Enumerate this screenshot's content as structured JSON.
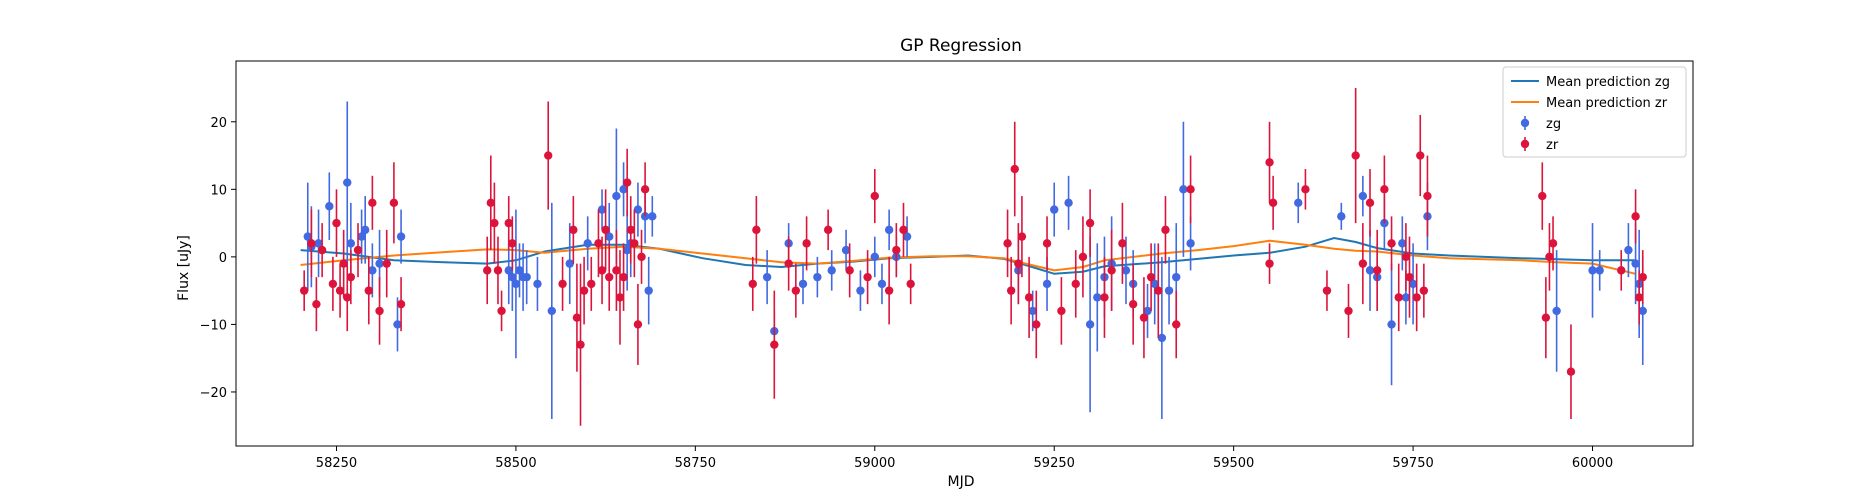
{
  "chart_data": {
    "type": "scatter",
    "title": "GP Regression",
    "xlabel": "MJD",
    "ylabel": "Flux [uJy]",
    "xlim": [
      58110,
      60140
    ],
    "ylim": [
      -28,
      29
    ],
    "xticks": [
      58250,
      58500,
      58750,
      59000,
      59250,
      59500,
      59750,
      60000
    ],
    "yticks": [
      -20,
      -10,
      0,
      10,
      20
    ],
    "legend_position": "top-right",
    "grid": false,
    "colors": {
      "zg_mean": "#1f77b4",
      "zr_mean": "#ff7f0e",
      "zg_points": "#4169e1",
      "zr_points": "#dc143c"
    },
    "legend": [
      "Mean prediction zg",
      "Mean prediction zr",
      "zg",
      "zr"
    ],
    "lines": [
      {
        "name": "Mean prediction zg",
        "x": [
          58200,
          58260,
          58330,
          58400,
          58460,
          58500,
          58540,
          58600,
          58650,
          58700,
          58760,
          58820,
          58870,
          58920,
          58970,
          59020,
          59080,
          59130,
          59180,
          59210,
          59250,
          59290,
          59320,
          59400,
          59450,
          59500,
          59550,
          59600,
          59640,
          59670,
          59700,
          59750,
          59800,
          59900,
          60000,
          60060
        ],
        "y": [
          1.0,
          0.5,
          -0.5,
          -0.8,
          -1.0,
          -0.5,
          0.8,
          1.8,
          1.8,
          1.2,
          -0.2,
          -1.2,
          -1.5,
          -1.0,
          -0.7,
          -0.2,
          0.0,
          0.2,
          -0.3,
          -1.2,
          -2.5,
          -2.2,
          -1.4,
          -0.8,
          -0.3,
          0.2,
          0.6,
          1.5,
          2.8,
          2.2,
          1.3,
          0.5,
          0.2,
          -0.2,
          -0.5,
          -0.5
        ]
      },
      {
        "name": "Mean prediction zr",
        "x": [
          58200,
          58260,
          58330,
          58400,
          58460,
          58500,
          58540,
          58600,
          58650,
          58700,
          58760,
          58820,
          58870,
          58920,
          58970,
          59020,
          59080,
          59130,
          59180,
          59210,
          59250,
          59290,
          59320,
          59400,
          59450,
          59500,
          59550,
          59600,
          59640,
          59670,
          59700,
          59750,
          59800,
          59900,
          59950,
          60000,
          60060
        ],
        "y": [
          -1.2,
          -0.5,
          0.2,
          0.7,
          1.1,
          1.0,
          0.6,
          1.2,
          1.5,
          1.2,
          0.5,
          -0.2,
          -0.8,
          -1.0,
          -0.6,
          -0.1,
          0.1,
          0.1,
          -0.2,
          -1.0,
          -2.0,
          -1.5,
          -0.5,
          0.5,
          1.0,
          1.6,
          2.4,
          1.8,
          1.2,
          0.9,
          0.8,
          0.2,
          -0.2,
          -0.5,
          -0.8,
          -1.0,
          -2.5
        ]
      }
    ],
    "series": [
      {
        "name": "zg",
        "points": [
          [
            58210,
            3,
            8
          ],
          [
            58215,
            1.5,
            6
          ],
          [
            58225,
            2,
            5
          ],
          [
            58240,
            7.5,
            5
          ],
          [
            58265,
            11,
            12
          ],
          [
            58270,
            2,
            6
          ],
          [
            58285,
            3,
            4
          ],
          [
            58290,
            4,
            5
          ],
          [
            58300,
            -2,
            4
          ],
          [
            58310,
            -1,
            5
          ],
          [
            58335,
            -10,
            4
          ],
          [
            58340,
            3,
            4
          ],
          [
            58490,
            -2,
            5
          ],
          [
            58495,
            -3,
            5
          ],
          [
            58500,
            -4,
            11
          ],
          [
            58505,
            -2,
            4
          ],
          [
            58510,
            -3,
            5
          ],
          [
            58515,
            -3,
            4
          ],
          [
            58530,
            -4,
            4
          ],
          [
            58550,
            -8,
            16
          ],
          [
            58575,
            -1,
            6
          ],
          [
            58600,
            2,
            4
          ],
          [
            58620,
            7,
            3
          ],
          [
            58630,
            3,
            5
          ],
          [
            58640,
            9,
            10
          ],
          [
            58650,
            10,
            4
          ],
          [
            58655,
            1,
            6
          ],
          [
            58660,
            2,
            5
          ],
          [
            58670,
            7,
            4
          ],
          [
            58680,
            6,
            4
          ],
          [
            58685,
            -5,
            5
          ],
          [
            58690,
            6,
            3
          ],
          [
            58850,
            -3,
            4
          ],
          [
            58860,
            -11,
            3
          ],
          [
            58880,
            2,
            3
          ],
          [
            58900,
            -4,
            3
          ],
          [
            58920,
            -3,
            3
          ],
          [
            58940,
            -2,
            3
          ],
          [
            58960,
            1,
            3
          ],
          [
            58980,
            -5,
            3
          ],
          [
            59000,
            0,
            3
          ],
          [
            59010,
            -4,
            3
          ],
          [
            59020,
            4,
            3
          ],
          [
            59030,
            0,
            3
          ],
          [
            59045,
            3,
            3
          ],
          [
            59200,
            -2,
            5
          ],
          [
            59220,
            -8,
            3
          ],
          [
            59240,
            -4,
            4
          ],
          [
            59250,
            7,
            4
          ],
          [
            59270,
            8,
            4
          ],
          [
            59300,
            -10,
            13
          ],
          [
            59310,
            -6,
            8
          ],
          [
            59320,
            -3,
            6
          ],
          [
            59330,
            -1,
            7
          ],
          [
            59350,
            -2,
            5
          ],
          [
            59360,
            -4,
            5
          ],
          [
            59380,
            -8,
            4
          ],
          [
            59390,
            -4,
            6
          ],
          [
            59400,
            -12,
            12
          ],
          [
            59410,
            -5,
            5
          ],
          [
            59420,
            -3,
            8
          ],
          [
            59430,
            10,
            10
          ],
          [
            59440,
            2,
            4
          ],
          [
            59590,
            8,
            3
          ],
          [
            59650,
            6,
            2
          ],
          [
            59680,
            9,
            3
          ],
          [
            59690,
            -2,
            6
          ],
          [
            59700,
            -3,
            5
          ],
          [
            59710,
            5,
            4
          ],
          [
            59720,
            -10,
            9
          ],
          [
            59735,
            2,
            4
          ],
          [
            59740,
            -6,
            4
          ],
          [
            59750,
            -4,
            6
          ],
          [
            59770,
            6,
            5
          ],
          [
            59950,
            -8,
            9
          ],
          [
            60000,
            -2,
            7
          ],
          [
            60010,
            -2,
            3
          ],
          [
            60050,
            1,
            4
          ],
          [
            60060,
            -1,
            6
          ],
          [
            60065,
            -4,
            8
          ],
          [
            60070,
            -8,
            8
          ]
        ]
      },
      {
        "name": "zr",
        "points": [
          [
            58205,
            -5,
            3
          ],
          [
            58215,
            2,
            5
          ],
          [
            58222,
            -7,
            4
          ],
          [
            58230,
            1,
            4
          ],
          [
            58245,
            -4,
            4
          ],
          [
            58250,
            5,
            5
          ],
          [
            58255,
            -5,
            4
          ],
          [
            58260,
            -1,
            5
          ],
          [
            58265,
            -6,
            5
          ],
          [
            58270,
            -3,
            4
          ],
          [
            58280,
            1,
            4
          ],
          [
            58295,
            -5,
            5
          ],
          [
            58300,
            8,
            4
          ],
          [
            58310,
            -8,
            5
          ],
          [
            58320,
            -1,
            5
          ],
          [
            58330,
            8,
            6
          ],
          [
            58340,
            -7,
            4
          ],
          [
            58460,
            -2,
            5
          ],
          [
            58465,
            8,
            7
          ],
          [
            58470,
            5,
            6
          ],
          [
            58475,
            -2,
            5
          ],
          [
            58480,
            -8,
            3
          ],
          [
            58490,
            5,
            4
          ],
          [
            58495,
            2,
            4
          ],
          [
            58545,
            15,
            8
          ],
          [
            58565,
            -4,
            4
          ],
          [
            58580,
            4,
            5
          ],
          [
            58585,
            -9,
            8
          ],
          [
            58590,
            -13,
            12
          ],
          [
            58595,
            -5,
            5
          ],
          [
            58605,
            -4,
            4
          ],
          [
            58615,
            2,
            5
          ],
          [
            58620,
            -2,
            5
          ],
          [
            58625,
            4,
            6
          ],
          [
            58630,
            -3,
            5
          ],
          [
            58640,
            -2,
            6
          ],
          [
            58645,
            -6,
            7
          ],
          [
            58650,
            -3,
            5
          ],
          [
            58655,
            11,
            5
          ],
          [
            58660,
            4,
            5
          ],
          [
            58665,
            2,
            5
          ],
          [
            58670,
            -10,
            6
          ],
          [
            58675,
            0,
            4
          ],
          [
            58680,
            10,
            4
          ],
          [
            58830,
            -4,
            4
          ],
          [
            58835,
            4,
            5
          ],
          [
            58860,
            -13,
            8
          ],
          [
            58880,
            -1,
            4
          ],
          [
            58890,
            -5,
            4
          ],
          [
            58905,
            2,
            4
          ],
          [
            58935,
            4,
            3
          ],
          [
            58965,
            -2,
            4
          ],
          [
            58990,
            -3,
            4
          ],
          [
            59000,
            9,
            4
          ],
          [
            59020,
            -5,
            5
          ],
          [
            59030,
            1,
            4
          ],
          [
            59040,
            4,
            4
          ],
          [
            59050,
            -4,
            3
          ],
          [
            59185,
            2,
            5
          ],
          [
            59190,
            -5,
            5
          ],
          [
            59195,
            13,
            7
          ],
          [
            59200,
            -1,
            6
          ],
          [
            59205,
            3,
            6
          ],
          [
            59215,
            -6,
            6
          ],
          [
            59225,
            -10,
            5
          ],
          [
            59240,
            2,
            4
          ],
          [
            59260,
            -8,
            5
          ],
          [
            59280,
            -4,
            5
          ],
          [
            59290,
            0,
            6
          ],
          [
            59300,
            5,
            5
          ],
          [
            59320,
            -6,
            6
          ],
          [
            59330,
            -2,
            6
          ],
          [
            59345,
            2,
            6
          ],
          [
            59360,
            -7,
            6
          ],
          [
            59375,
            -9,
            6
          ],
          [
            59385,
            -3,
            5
          ],
          [
            59395,
            -5,
            7
          ],
          [
            59405,
            4,
            5
          ],
          [
            59420,
            -10,
            5
          ],
          [
            59440,
            10,
            5
          ],
          [
            59550,
            14,
            6
          ],
          [
            59550,
            -1,
            3
          ],
          [
            59555,
            8,
            4
          ],
          [
            59600,
            10,
            3
          ],
          [
            59630,
            -5,
            3
          ],
          [
            59660,
            -8,
            4
          ],
          [
            59670,
            15,
            10
          ],
          [
            59680,
            -1,
            6
          ],
          [
            59690,
            8,
            5
          ],
          [
            59700,
            -2,
            6
          ],
          [
            59710,
            10,
            5
          ],
          [
            59720,
            2,
            4
          ],
          [
            59730,
            -6,
            5
          ],
          [
            59740,
            0,
            5
          ],
          [
            59745,
            -3,
            6
          ],
          [
            59755,
            -6,
            5
          ],
          [
            59760,
            15,
            6
          ],
          [
            59765,
            -5,
            4
          ],
          [
            59770,
            9,
            6
          ],
          [
            59930,
            9,
            5
          ],
          [
            59935,
            -9,
            6
          ],
          [
            59940,
            0,
            5
          ],
          [
            59945,
            2,
            4
          ],
          [
            59970,
            -17,
            7
          ],
          [
            60040,
            -2,
            3
          ],
          [
            60060,
            6,
            4
          ],
          [
            60065,
            -6,
            4
          ],
          [
            60070,
            -3,
            4
          ]
        ]
      }
    ]
  }
}
